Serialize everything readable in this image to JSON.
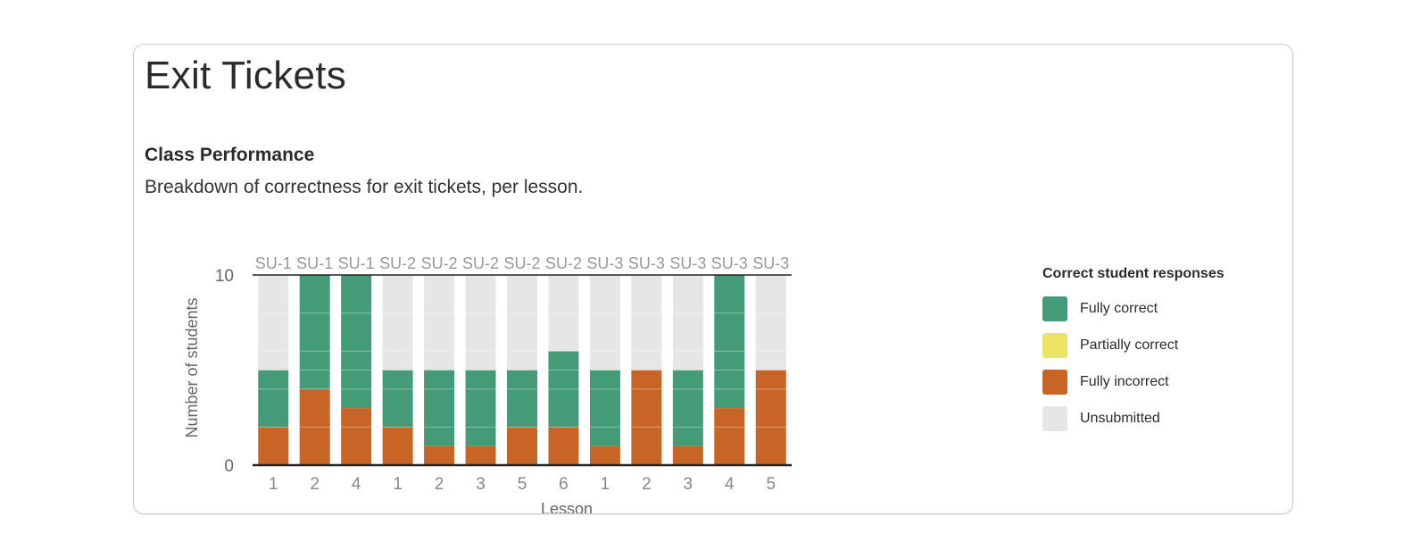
{
  "page": {
    "title": "Exit Tickets",
    "section_title": "Class Performance",
    "section_description": "Breakdown of correctness for exit tickets, per lesson."
  },
  "legend": {
    "title": "Correct student responses",
    "items": [
      {
        "key": "fully_correct",
        "label": "Fully correct",
        "color": "#449b78"
      },
      {
        "key": "partially_correct",
        "label": "Partially correct",
        "color": "#ece464"
      },
      {
        "key": "fully_incorrect",
        "label": "Fully incorrect",
        "color": "#c96427"
      },
      {
        "key": "unsubmitted",
        "label": "Unsubmitted",
        "color": "#e6e6e6"
      }
    ]
  },
  "chart_data": {
    "type": "bar",
    "stacked": true,
    "ylabel": "Number of students",
    "xlabel": "Lesson",
    "ylim": [
      0,
      10
    ],
    "yticks": [
      0,
      10
    ],
    "grid": true,
    "legend_position": "right",
    "unit_labels": [
      "SU-1",
      "SU-1",
      "SU-1",
      "SU-2",
      "SU-2",
      "SU-2",
      "SU-2",
      "SU-2",
      "SU-3",
      "SU-3",
      "SU-3",
      "SU-3",
      "SU-3"
    ],
    "categories": [
      "1",
      "2",
      "4",
      "1",
      "2",
      "3",
      "5",
      "6",
      "1",
      "2",
      "3",
      "4",
      "5"
    ],
    "series": [
      {
        "name": "Fully incorrect",
        "color": "#c96427",
        "values": [
          2,
          4,
          3,
          2,
          1,
          1,
          2,
          2,
          1,
          5,
          1,
          3,
          5
        ]
      },
      {
        "name": "Partially correct",
        "color": "#ece464",
        "values": [
          0,
          0,
          0,
          0,
          0,
          0,
          0,
          0,
          0,
          0,
          0,
          0,
          0
        ]
      },
      {
        "name": "Fully correct",
        "color": "#449b78",
        "values": [
          3,
          6,
          7,
          3,
          4,
          4,
          3,
          4,
          4,
          0,
          4,
          7,
          0
        ]
      },
      {
        "name": "Unsubmitted",
        "color": "#e6e6e6",
        "values": [
          5,
          0,
          0,
          5,
          5,
          5,
          5,
          4,
          5,
          5,
          5,
          0,
          5
        ]
      }
    ]
  }
}
